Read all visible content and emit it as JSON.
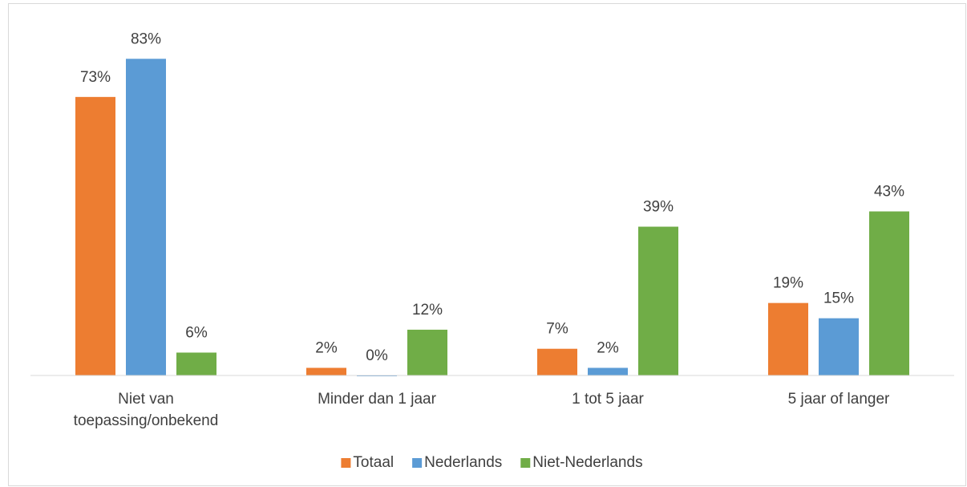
{
  "chart_data": {
    "type": "bar",
    "categories": [
      "Niet van toepassing/onbekend",
      "Minder dan 1 jaar",
      "1 tot 5 jaar",
      "5 jaar of langer"
    ],
    "series": [
      {
        "name": "Totaal",
        "color": "#ed7d31",
        "values": [
          73,
          2,
          7,
          19
        ],
        "value_labels": [
          "73%",
          "2%",
          "7%",
          "19%"
        ]
      },
      {
        "name": "Nederlands",
        "color": "#5b9bd5",
        "values": [
          83,
          0,
          2,
          15
        ],
        "value_labels": [
          "83%",
          "0%",
          "2%",
          "15%"
        ]
      },
      {
        "name": "Niet-Nederlands",
        "color": "#70ad47",
        "values": [
          6,
          12,
          39,
          43
        ],
        "value_labels": [
          "6%",
          "12%",
          "39%",
          "43%"
        ]
      }
    ],
    "ylim": [
      0,
      90
    ],
    "legend": "bottom"
  }
}
